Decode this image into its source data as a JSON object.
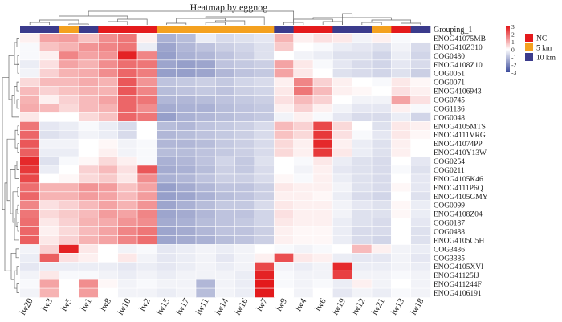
{
  "chart_data": {
    "type": "heatmap",
    "title": "Heatmap by eggnog",
    "annotation_label": "Grouping_1",
    "columns": [
      "lw20",
      "lw3",
      "lw5",
      "lw1",
      "lw8",
      "lw10",
      "lw2",
      "lw15",
      "lw17",
      "lw11",
      "lw14",
      "lw16",
      "lw7",
      "lw9",
      "lw4",
      "lw6",
      "lw19",
      "lw12",
      "lw21",
      "lw13",
      "lw18"
    ],
    "column_groups": [
      "10 km",
      "10 km",
      "5 km",
      "10 km",
      "NC",
      "NC",
      "NC",
      "5 km",
      "5 km",
      "5 km",
      "5 km",
      "5 km",
      "5 km",
      "10 km",
      "NC",
      "NC",
      "10 km",
      "10 km",
      "5 km",
      "NC",
      "10 km"
    ],
    "rows": [
      "ENOG41075MB",
      "ENOG410Z310",
      "COG0480",
      "ENOG4108Z10",
      "COG0051",
      "COG0071",
      "ENOG4106943",
      "COG0745",
      "COG1136",
      "COG0048",
      "ENOG4105MTS",
      "ENOG4111VRG",
      "ENOG41074PP",
      "ENOG410Y13W",
      "COG0254",
      "COG0211",
      "ENOG4105K46",
      "ENOG4111P6Q",
      "ENOG4105GMY",
      "COG0099",
      "ENOG4108Z04",
      "COG0187",
      "COG0488",
      "ENOG4105C5H",
      "COG3436",
      "COG3385",
      "ENOG4105XVI",
      "ENOG41125IJ",
      "ENOG411244F",
      "ENOG4106191"
    ],
    "values": [
      [
        0.2,
        1.2,
        1.3,
        0.8,
        1.5,
        1.8,
        0.2,
        -1.3,
        -1.1,
        -0.3,
        -0.6,
        -0.5,
        -0.4,
        1.0,
        0.2,
        0.4,
        0.3,
        -0.2,
        0.2,
        -0.1,
        0.0
      ],
      [
        -0.1,
        0.8,
        1.0,
        1.4,
        1.6,
        1.8,
        -0.3,
        -1.5,
        -1.2,
        -1.0,
        -0.8,
        -0.7,
        -0.5,
        0.7,
        0.0,
        -0.1,
        -0.3,
        -0.4,
        -0.5,
        -0.2,
        -0.6
      ],
      [
        -0.1,
        0.2,
        1.6,
        1.2,
        1.4,
        2.9,
        1.6,
        -1.6,
        -1.3,
        -1.2,
        -1.0,
        -0.8,
        -0.5,
        0.0,
        -0.2,
        -0.3,
        -0.5,
        -0.5,
        -0.7,
        -0.3,
        -0.7
      ],
      [
        -0.3,
        0.4,
        1.2,
        1.0,
        1.5,
        1.9,
        1.8,
        -1.5,
        -1.6,
        -1.5,
        -1.0,
        -0.9,
        -0.8,
        1.2,
        0.3,
        -0.1,
        -0.4,
        -0.6,
        -0.7,
        -0.4,
        -0.6
      ],
      [
        -0.2,
        0.6,
        1.0,
        1.1,
        1.5,
        2.0,
        1.7,
        -1.6,
        -1.6,
        -1.5,
        -1.2,
        -1.0,
        -0.9,
        1.2,
        0.3,
        0.0,
        -0.5,
        -0.6,
        -0.7,
        -0.5,
        -0.8
      ],
      [
        0.5,
        0.9,
        0.9,
        1.1,
        1.0,
        2.2,
        1.4,
        -1.0,
        -0.9,
        -0.8,
        -0.9,
        -0.7,
        -0.6,
        0.2,
        1.6,
        0.6,
        0.2,
        0.0,
        -0.1,
        0.3,
        0.1
      ],
      [
        0.9,
        0.6,
        0.8,
        1.0,
        1.0,
        2.2,
        1.6,
        -1.1,
        -1.0,
        -0.9,
        -1.0,
        -0.8,
        -0.7,
        0.3,
        1.8,
        0.9,
        0.2,
        0.1,
        0.0,
        0.4,
        0.2
      ],
      [
        1.0,
        0.2,
        0.6,
        0.9,
        1.2,
        2.0,
        1.8,
        -1.2,
        -1.2,
        -1.1,
        -1.0,
        -0.9,
        -0.8,
        0.4,
        0.9,
        0.6,
        0.0,
        -0.2,
        -0.2,
        1.2,
        0.4
      ],
      [
        1.1,
        0.9,
        0.5,
        0.9,
        1.0,
        2.0,
        1.5,
        -1.4,
        -1.3,
        -1.3,
        -1.1,
        -1.0,
        -0.9,
        0.2,
        0.6,
        0.2,
        -0.2,
        -0.4,
        -0.4,
        0.2,
        -0.1
      ],
      [
        0.3,
        0.0,
        0.0,
        0.5,
        0.8,
        2.0,
        1.8,
        -1.6,
        -1.3,
        -1.2,
        -1.1,
        -1.0,
        -0.9,
        -0.2,
        0.2,
        -0.1,
        -0.4,
        -0.6,
        -0.6,
        -0.3,
        -0.7
      ],
      [
        1.8,
        -0.4,
        -0.3,
        -0.1,
        -0.3,
        -0.6,
        0.0,
        -1.1,
        -1.2,
        -1.0,
        -0.9,
        -0.8,
        -0.6,
        0.9,
        0.6,
        2.4,
        0.5,
        0.0,
        -0.5,
        0.3,
        0.2
      ],
      [
        2.0,
        -0.5,
        -0.4,
        -0.2,
        -0.3,
        -0.6,
        0.0,
        -1.2,
        -1.1,
        -1.0,
        -0.9,
        -0.8,
        -0.6,
        0.8,
        0.5,
        2.6,
        0.4,
        -0.1,
        -0.4,
        0.3,
        0.1
      ],
      [
        2.2,
        -0.2,
        -0.2,
        0.0,
        0.1,
        -0.2,
        -0.1,
        -1.2,
        -1.2,
        -1.1,
        -0.9,
        -0.8,
        -0.6,
        0.5,
        0.2,
        2.8,
        0.2,
        -0.3,
        -0.5,
        0.2,
        0.0
      ],
      [
        2.1,
        -0.3,
        -0.3,
        0.0,
        0.2,
        -0.2,
        -0.1,
        -1.1,
        -1.1,
        -1.0,
        -0.9,
        -0.8,
        -0.6,
        0.5,
        0.2,
        2.6,
        0.3,
        -0.3,
        -0.5,
        0.2,
        0.0
      ],
      [
        2.8,
        -0.5,
        -0.1,
        0.1,
        0.5,
        0.2,
        -0.1,
        -1.3,
        -1.2,
        -1.0,
        -0.7,
        -0.9,
        -0.5,
        0.0,
        -0.1,
        0.3,
        -0.3,
        -0.5,
        -0.6,
        0.0,
        -0.4
      ],
      [
        2.6,
        -0.3,
        0.0,
        0.6,
        0.9,
        0.4,
        2.2,
        -1.4,
        -1.3,
        -1.1,
        -0.8,
        -0.9,
        -0.6,
        0.0,
        -0.2,
        0.2,
        -0.4,
        -0.5,
        -0.6,
        -0.1,
        -0.5
      ],
      [
        2.4,
        0.0,
        0.1,
        0.5,
        0.7,
        0.3,
        1.5,
        -1.3,
        -1.2,
        -1.0,
        -0.8,
        -0.8,
        -0.6,
        0.1,
        -0.1,
        0.2,
        -0.3,
        -0.5,
        -0.6,
        0.0,
        -0.4
      ],
      [
        1.9,
        1.0,
        1.0,
        1.4,
        1.3,
        0.8,
        1.2,
        -1.6,
        -1.4,
        -1.2,
        -1.0,
        -1.0,
        -0.8,
        0.3,
        0.2,
        0.2,
        -0.2,
        -0.5,
        -0.6,
        0.1,
        -0.4
      ],
      [
        2.0,
        1.0,
        1.0,
        1.3,
        1.2,
        0.9,
        1.3,
        -1.6,
        -1.5,
        -1.3,
        -1.1,
        -1.0,
        -0.8,
        0.2,
        0.2,
        0.1,
        -0.3,
        -0.6,
        -0.7,
        0.0,
        -0.5
      ],
      [
        1.6,
        0.4,
        0.6,
        0.9,
        1.2,
        1.0,
        1.4,
        -1.5,
        -1.3,
        -1.1,
        -0.9,
        -0.9,
        -0.6,
        0.3,
        0.2,
        0.2,
        -0.2,
        -0.4,
        -0.5,
        0.1,
        -0.3
      ],
      [
        1.8,
        0.5,
        0.7,
        0.9,
        1.3,
        1.2,
        1.6,
        -1.5,
        -1.4,
        -1.2,
        -1.0,
        -1.0,
        -0.7,
        0.4,
        0.2,
        0.2,
        -0.2,
        -0.5,
        -0.5,
        0.1,
        -0.3
      ],
      [
        1.9,
        0.3,
        0.6,
        1.0,
        1.1,
        1.4,
        1.5,
        -1.4,
        -1.3,
        -1.1,
        -1.0,
        -0.9,
        -0.7,
        0.3,
        0.2,
        0.2,
        -0.3,
        -0.5,
        -0.6,
        0.0,
        -0.4
      ],
      [
        2.0,
        0.2,
        0.5,
        0.9,
        1.2,
        1.6,
        1.8,
        -1.5,
        -1.4,
        -1.2,
        -1.0,
        -1.0,
        -0.8,
        0.2,
        0.1,
        0.1,
        -0.3,
        -0.6,
        -0.6,
        0.0,
        -0.5
      ],
      [
        2.1,
        0.3,
        0.6,
        1.0,
        1.2,
        1.6,
        1.9,
        -1.5,
        -1.4,
        -1.3,
        -1.1,
        -1.0,
        -0.8,
        0.2,
        0.1,
        0.1,
        -0.3,
        -0.6,
        -0.7,
        0.0,
        -0.5
      ],
      [
        -0.2,
        0.6,
        2.9,
        0.3,
        0.0,
        -0.2,
        -0.1,
        -0.4,
        -0.3,
        -0.2,
        -0.3,
        -0.2,
        0.0,
        -0.1,
        -0.2,
        -0.1,
        0.0,
        0.9,
        0.2,
        -0.2,
        -0.3
      ],
      [
        -0.3,
        2.1,
        0.4,
        0.2,
        0.0,
        0.3,
        -0.2,
        -0.4,
        -0.3,
        -0.2,
        -0.4,
        -0.2,
        0.2,
        2.3,
        0.3,
        0.2,
        -0.3,
        -0.4,
        -0.4,
        -0.2,
        -0.4
      ],
      [
        -0.4,
        -0.3,
        -0.3,
        -0.3,
        -0.3,
        -0.4,
        -0.3,
        -0.4,
        -0.3,
        -0.2,
        -0.3,
        -0.2,
        2.4,
        -0.2,
        -0.3,
        -0.2,
        2.8,
        -0.3,
        -0.3,
        -0.2,
        -0.3
      ],
      [
        -0.2,
        0.3,
        -0.1,
        -0.1,
        -0.2,
        -0.3,
        -0.2,
        -0.3,
        -0.2,
        -0.2,
        -0.2,
        -0.3,
        2.9,
        -0.1,
        -0.2,
        -0.2,
        2.5,
        -0.2,
        -0.2,
        -0.1,
        -0.2
      ],
      [
        -0.1,
        1.2,
        0.0,
        1.5,
        0.1,
        -0.2,
        -0.1,
        -0.2,
        -0.2,
        -1.2,
        -0.2,
        -0.3,
        3.0,
        -0.1,
        -0.2,
        -0.1,
        -0.3,
        0.2,
        -0.2,
        0.0,
        -0.2
      ],
      [
        -0.2,
        1.0,
        0.0,
        1.3,
        0.0,
        -0.2,
        -0.2,
        -0.3,
        -0.2,
        -1.1,
        -0.2,
        -0.3,
        3.0,
        0.0,
        -0.2,
        0.0,
        -0.4,
        -0.2,
        -0.3,
        -0.1,
        -0.2
      ]
    ],
    "scale": {
      "min": -3,
      "max": 3,
      "ticks": [
        3,
        2,
        1,
        0,
        -1,
        -2,
        -3
      ],
      "low_color": "#3b4b9b",
      "mid_color": "#ffffff",
      "high_color": "#e31a1c"
    },
    "legend": [
      {
        "label": "NC",
        "color": "#e41a1c"
      },
      {
        "label": "5 km",
        "color": "#f4a11f"
      },
      {
        "label": "10 km",
        "color": "#3b3b8c"
      }
    ]
  }
}
